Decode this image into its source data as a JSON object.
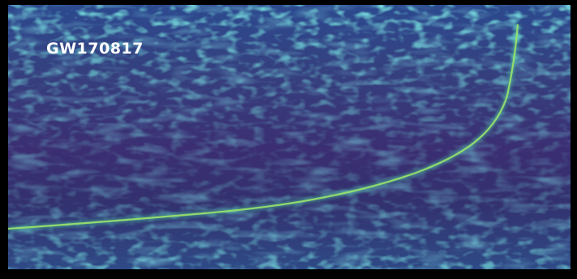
{
  "image": {
    "event_label": "GW170817",
    "colors": {
      "frame": "#000000",
      "background_low": "#3a1f6b",
      "background_mid": "#30478f",
      "noise_cyan": "#2a9aa6",
      "chirp": "#9de26a"
    }
  }
}
